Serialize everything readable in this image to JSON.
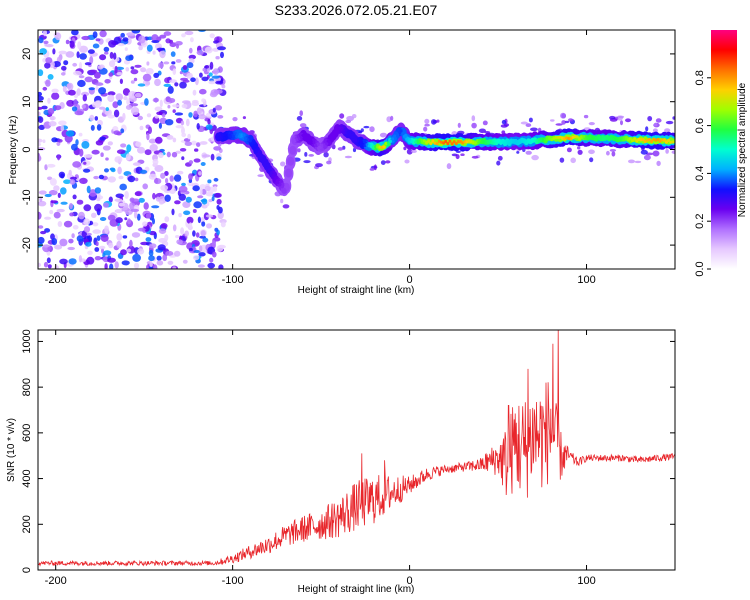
{
  "title": "S233.2026.072.05.21.E07",
  "chart_data": [
    {
      "type": "heatmap",
      "xlabel": "Height of straight line (km)",
      "ylabel": "Frequency (Hz)",
      "xlim": [
        -210,
        150
      ],
      "ylim": [
        -25,
        25
      ],
      "xticks": [
        -200,
        -100,
        0,
        100
      ],
      "xtick_labels": [
        "-200",
        "-100",
        "0",
        "100"
      ],
      "yticks": [
        -20,
        -10,
        0,
        10,
        20
      ],
      "ytick_labels": [
        "-20",
        "-10",
        "0",
        "10",
        "20"
      ],
      "colorbar": {
        "label": "Normalized spectral amplitude",
        "range": [
          0,
          1
        ],
        "ticks": [
          0.0,
          0.2,
          0.4,
          0.6,
          0.8
        ],
        "tick_labels": [
          "0.0",
          "0.2",
          "0.4",
          "0.6",
          "0.8"
        ],
        "colors": [
          "#ffffff",
          "#e6c8ff",
          "#b070ff",
          "#6a00f0",
          "#1010ff",
          "#00b0ff",
          "#00ffd0",
          "#20ff40",
          "#a0ff00",
          "#ffd000",
          "#ff7000",
          "#ff0000",
          "#ff0080"
        ]
      },
      "ridge": {
        "name": "dominant frequency track",
        "x": [
          -110,
          -100,
          -95,
          -90,
          -85,
          -80,
          -75,
          -70,
          -65,
          -60,
          -55,
          -50,
          -45,
          -40,
          -35,
          -30,
          -25,
          -20,
          -15,
          -10,
          -5,
          0,
          10,
          20,
          30,
          40,
          50,
          60,
          70,
          80,
          90,
          100,
          110,
          120,
          130,
          140,
          150
        ],
        "y": [
          2.5,
          3.0,
          3.0,
          2.0,
          -1.0,
          -4.0,
          -6.5,
          -8.5,
          2.0,
          3.0,
          1.5,
          0.5,
          2.0,
          4.5,
          3.5,
          2.0,
          1.0,
          0.5,
          0.5,
          2.0,
          4.0,
          1.8,
          1.5,
          1.5,
          1.5,
          1.6,
          1.5,
          1.6,
          1.8,
          2.2,
          2.5,
          2.5,
          2.3,
          2.2,
          2.0,
          1.8,
          1.8
        ],
        "amplitude": [
          0.3,
          0.35,
          0.4,
          0.35,
          0.3,
          0.3,
          0.25,
          0.2,
          0.2,
          0.25,
          0.25,
          0.2,
          0.25,
          0.25,
          0.3,
          0.3,
          0.35,
          0.55,
          0.8,
          0.4,
          0.35,
          0.45,
          0.7,
          0.85,
          0.8,
          0.6,
          0.5,
          0.45,
          0.5,
          0.65,
          0.8,
          0.6,
          0.55,
          0.6,
          0.75,
          0.8,
          0.7
        ]
      },
      "noise_region": {
        "x_range": [
          -210,
          -105
        ],
        "amplitude_range": [
          0.0,
          0.2
        ]
      }
    },
    {
      "type": "line",
      "xlabel": "Height of straight line (km)",
      "ylabel": "SNR (10 * v/v)",
      "xlim": [
        -210,
        150
      ],
      "ylim": [
        0,
        1050
      ],
      "xticks": [
        -200,
        -100,
        0,
        100
      ],
      "xtick_labels": [
        "-200",
        "-100",
        "0",
        "100"
      ],
      "yticks": [
        0,
        200,
        400,
        600,
        800,
        1000
      ],
      "ytick_labels": [
        "0",
        "200",
        "400",
        "600",
        "800",
        "1000"
      ],
      "series": [
        {
          "name": "SNR",
          "color": "#e8262b",
          "x": [
            -210,
            -180,
            -150,
            -120,
            -110,
            -100,
            -90,
            -80,
            -70,
            -60,
            -50,
            -40,
            -30,
            -20,
            -10,
            0,
            10,
            20,
            30,
            40,
            50,
            55,
            60,
            65,
            70,
            75,
            80,
            85,
            90,
            95,
            100,
            110,
            120,
            130,
            140,
            150
          ],
          "y": [
            30,
            30,
            30,
            30,
            30,
            50,
            80,
            110,
            150,
            180,
            200,
            230,
            280,
            310,
            340,
            370,
            420,
            440,
            450,
            460,
            490,
            470,
            560,
            520,
            600,
            580,
            630,
            500,
            500,
            470,
            490,
            490,
            490,
            480,
            490,
            495
          ],
          "noise_amplitude": [
            10,
            10,
            10,
            10,
            10,
            20,
            30,
            40,
            50,
            60,
            70,
            90,
            110,
            110,
            80,
            40,
            30,
            20,
            20,
            30,
            80,
            170,
            220,
            240,
            220,
            240,
            240,
            120,
            30,
            20,
            15,
            15,
            15,
            15,
            15,
            15
          ],
          "peaks": [
            {
              "x": 84,
              "y": 1050
            },
            {
              "x": 81,
              "y": 990
            },
            {
              "x": 67,
              "y": 880
            },
            {
              "x": 56,
              "y": 720
            },
            {
              "x": -27,
              "y": 510
            },
            {
              "x": -14,
              "y": 480
            }
          ]
        }
      ]
    }
  ]
}
